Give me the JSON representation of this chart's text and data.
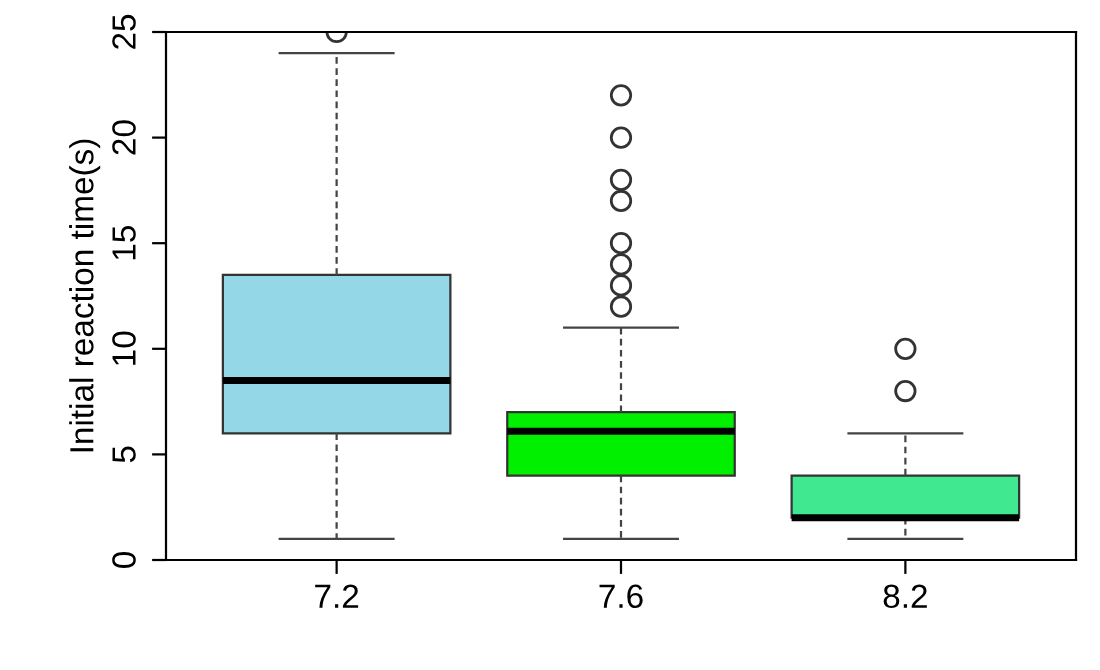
{
  "chart_data": {
    "type": "box",
    "ylabel": "Initial reaction time(s)",
    "categories": [
      "7.2",
      "7.6",
      "8.2"
    ],
    "boxes": [
      {
        "low": 1,
        "q1": 6,
        "median": 8.5,
        "q3": 13.5,
        "high": 24,
        "outliers": [
          25
        ]
      },
      {
        "low": 1,
        "q1": 4,
        "median": 6.1,
        "q3": 7,
        "high": 11,
        "outliers": [
          12,
          13,
          14,
          15,
          17,
          18,
          20,
          22
        ]
      },
      {
        "low": 1,
        "q1": 2,
        "median": 2,
        "q3": 4,
        "high": 6,
        "outliers": [
          8,
          10
        ]
      }
    ],
    "colors": [
      "#94d8e8",
      "#00f000",
      "#40e890"
    ],
    "ylim": [
      0,
      25
    ],
    "yticks": [
      0,
      5,
      10,
      15,
      20,
      25
    ],
    "grid": false,
    "legend": false
  }
}
